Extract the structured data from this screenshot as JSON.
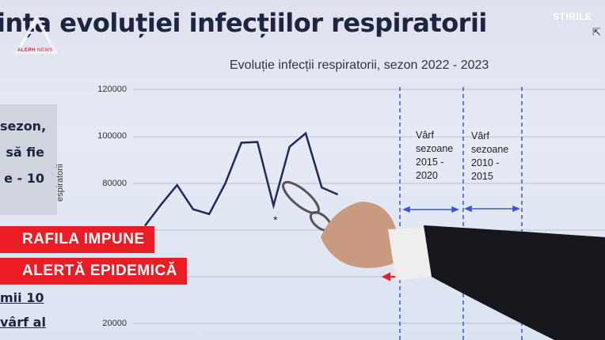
{
  "screen": {
    "title": "ința evoluției infecțiilor respiratorii",
    "subtitle": "Evoluție infecții respiratorii, sezon 2022 - 2023",
    "y_axis_label": "espiratorii",
    "y_ticks": [
      "120000",
      "100000",
      "80000",
      "20000"
    ],
    "series_values": [
      62000,
      71000,
      79300,
      69000,
      67000,
      80000,
      97300,
      97600,
      70600,
      95600,
      101300,
      78300,
      75300
    ],
    "asterisk": "*",
    "annotations": [
      {
        "lines": [
          "Vârf",
          "sezoane",
          "2015 -",
          "2020"
        ]
      },
      {
        "lines": [
          "Vârf",
          "sezoane",
          "2010 -",
          "2015"
        ]
      }
    ],
    "side_text": [
      "sezon,",
      "să fie",
      "e - 10",
      "mii 10",
      "vârf al"
    ],
    "line_color": "#1e2a5a",
    "marker_color": "#3a55d8"
  },
  "overlay": {
    "logo_text_1": "ALEPH",
    "logo_text_2": "NEWS",
    "brand": "STIRILE",
    "headline_1": "RAFILA IMPUNE",
    "headline_2": "ALERTĂ EPIDEMICĂ",
    "banner_color": "#ec1c24"
  }
}
